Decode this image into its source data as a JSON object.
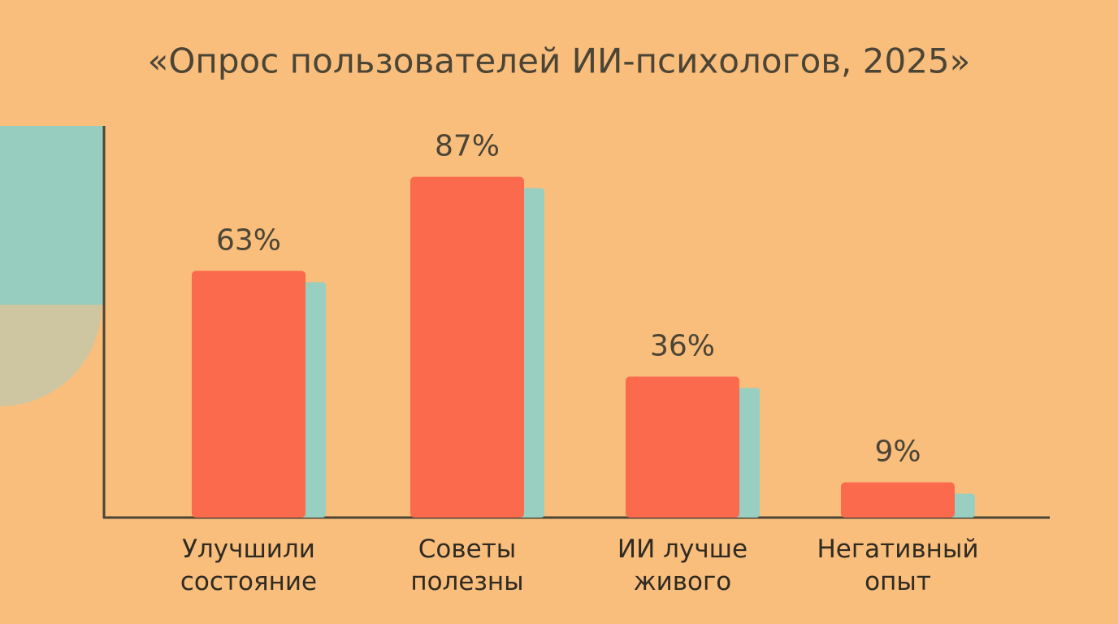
{
  "chart_data": {
    "type": "bar",
    "title": "«Опрос пользователей ИИ-психологов, 2025»",
    "categories": [
      "Улучшили состояние",
      "Советы полезны",
      "ИИ лучше живого",
      "Негативный опыт"
    ],
    "values": [
      63,
      87,
      36,
      9
    ],
    "value_labels": [
      "63%",
      "87%",
      "36%",
      "9%"
    ],
    "color": "#fb6a4c",
    "ylim": [
      0,
      100
    ]
  }
}
